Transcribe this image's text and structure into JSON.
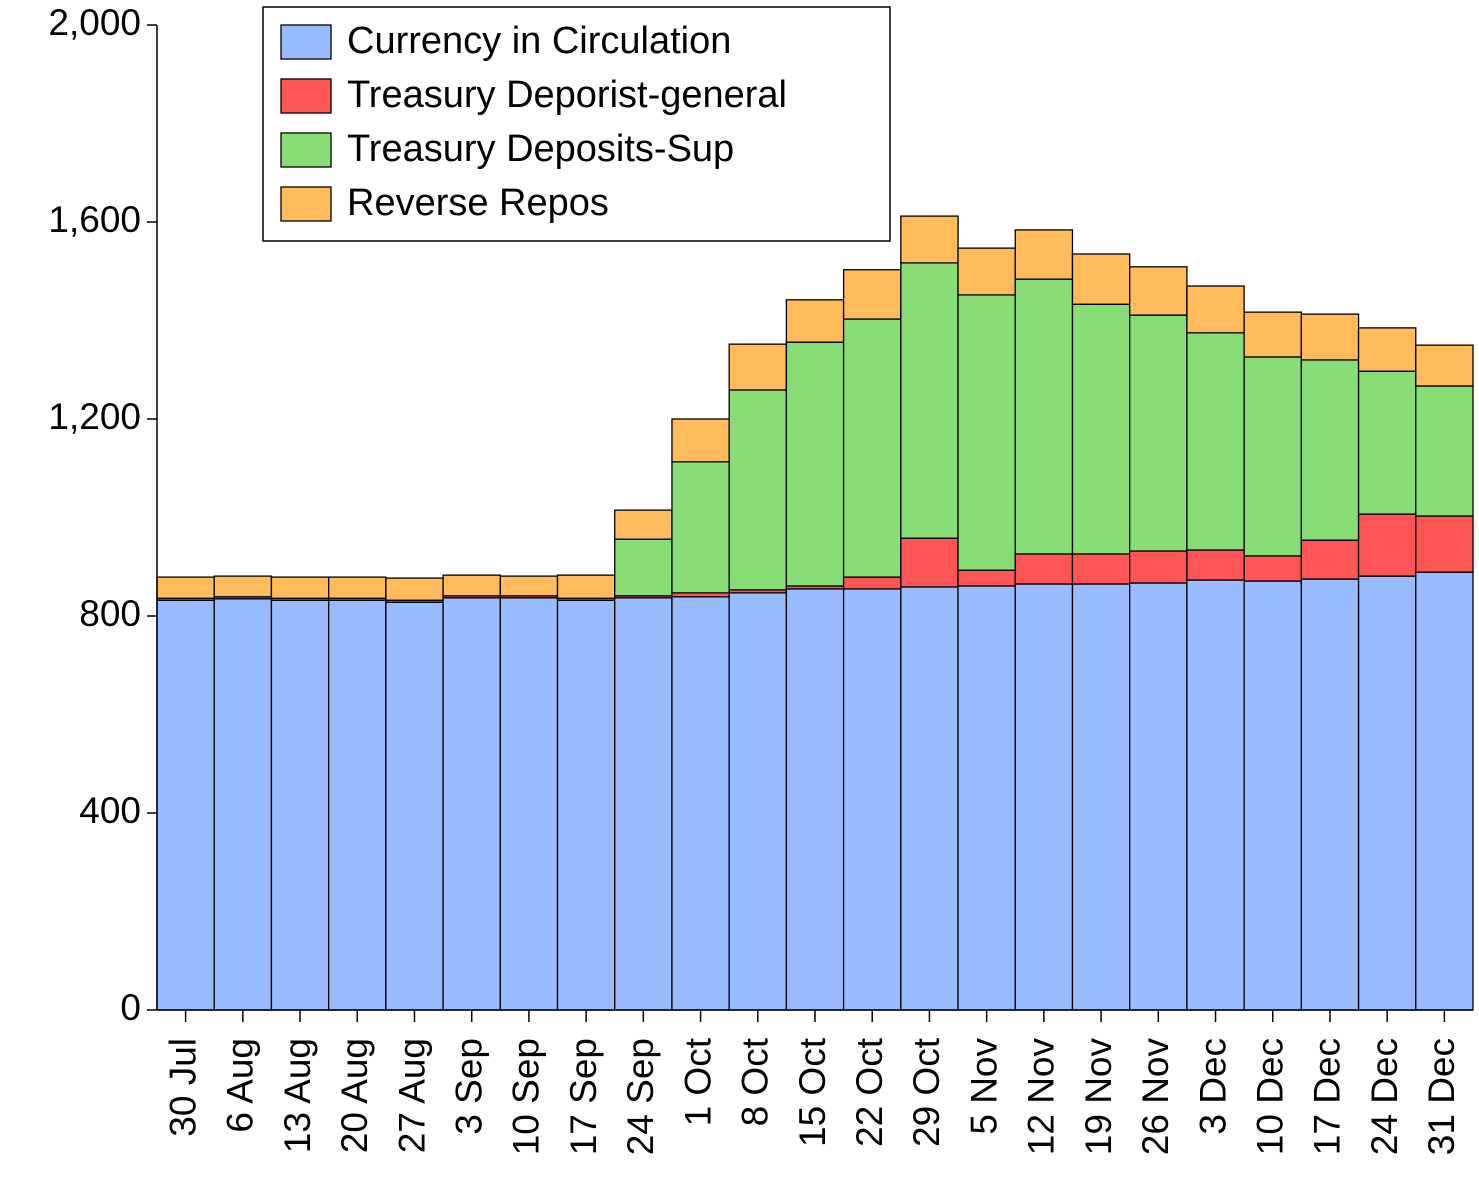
{
  "chart_data": {
    "type": "stacked_bar",
    "categories": [
      "30 Jul",
      "6 Aug",
      "13 Aug",
      "20 Aug",
      "27 Aug",
      "3 Sep",
      "10 Sep",
      "17 Sep",
      "24 Sep",
      "1 Oct",
      "8 Oct",
      "15 Oct",
      "22 Oct",
      "29 Oct",
      "5 Nov",
      "12 Nov",
      "19 Nov",
      "26 Nov",
      "3 Dec",
      "10 Dec",
      "17 Dec",
      "24 Dec",
      "31 Dec"
    ],
    "series": [
      {
        "name": "Currency in Circulation",
        "color": "#99bbff",
        "values": [
          832,
          835,
          832,
          832,
          828,
          837,
          837,
          832,
          837,
          839,
          847,
          855,
          855,
          859,
          861,
          865,
          865,
          867,
          873,
          871,
          875,
          881,
          889
        ]
      },
      {
        "name": "Treasury Deporist-general",
        "color": "#ff5555",
        "values": [
          4,
          4,
          4,
          4,
          4,
          4,
          4,
          4,
          4,
          8,
          6,
          6,
          24,
          99,
          32,
          61,
          61,
          65,
          61,
          51,
          79,
          126,
          114
        ]
      },
      {
        "name": "Treasury Deposits-Sup",
        "color": "#88dd77",
        "values": [
          0,
          0,
          0,
          0,
          0,
          0,
          0,
          0,
          115,
          266,
          406,
          495,
          524,
          559,
          559,
          558,
          507,
          479,
          441,
          404,
          366,
          290,
          264
        ]
      },
      {
        "name": "Reverse Repos",
        "color": "#ffbb5c",
        "values": [
          43,
          42,
          43,
          43,
          45,
          42,
          40,
          47,
          59,
          87,
          93,
          86,
          100,
          95,
          95,
          100,
          102,
          98,
          95,
          91,
          93,
          88,
          83
        ]
      }
    ],
    "ylim": [
      0,
      2000
    ],
    "yticks": [
      0,
      400,
      800,
      {
        "value": 1200,
        "label": "1,200"
      },
      {
        "value": 1600,
        "label": "1,600"
      },
      {
        "value": 2000,
        "label": "2,000"
      }
    ],
    "legend": "upper left"
  }
}
